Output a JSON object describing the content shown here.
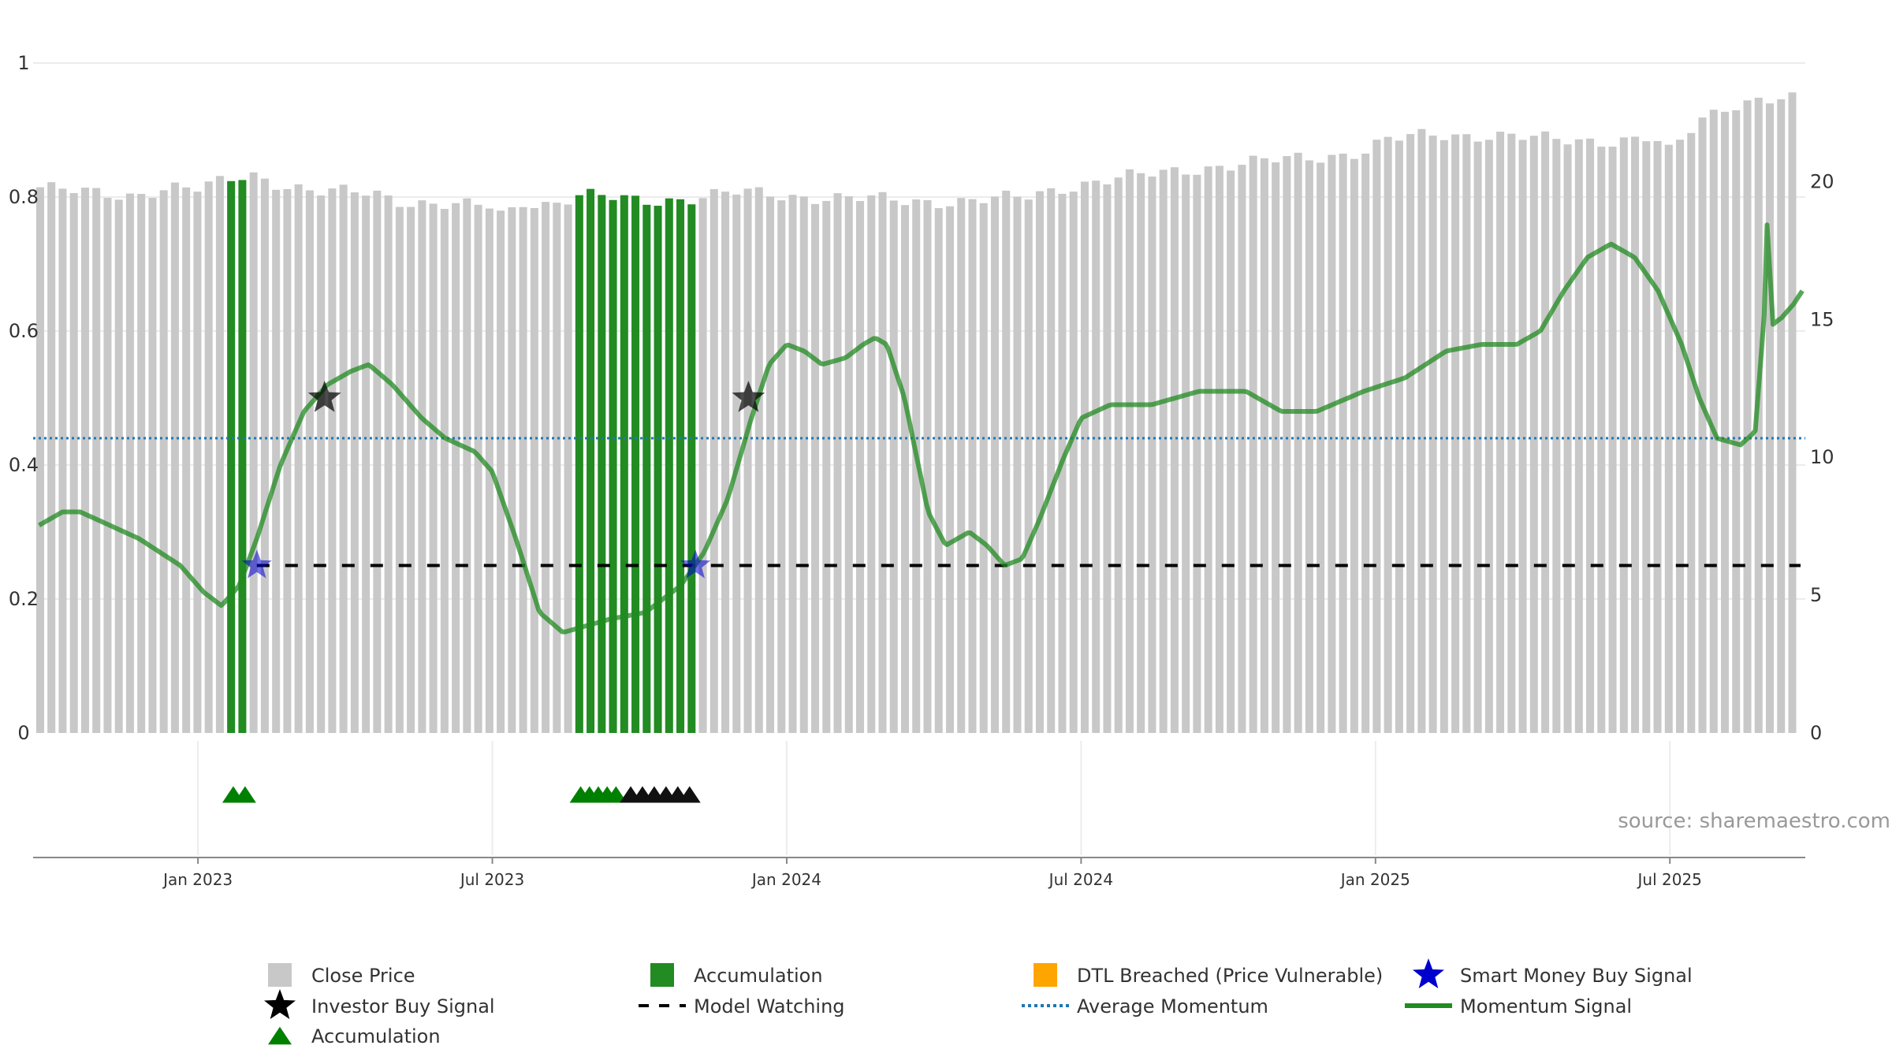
{
  "source_note": "source: sharemaestro.com",
  "colors": {
    "close_price": "#c8c8c8",
    "accumulation_bar": "#228b22",
    "dtl": "#ffa500",
    "smart_money": "#0000cd",
    "investor": "#000000",
    "watching": "#000000",
    "avg_momentum": "#1f77b4",
    "momentum": "#228b22",
    "accum_marker": "#008000"
  },
  "legend": {
    "close_price": "Close Price",
    "accumulation": "Accumulation",
    "dtl_breached": "DTL Breached (Price Vulnerable)",
    "smart_money": "Smart Money Buy Signal",
    "investor_buy": "Investor Buy Signal",
    "model_watching": "Model Watching",
    "average_momentum": "Average Momentum",
    "momentum_signal": "Momentum Signal",
    "accumulation_marker": "Accumulation"
  },
  "chart_data": {
    "type": "bar",
    "title": "",
    "x_range": [
      2022.72,
      2025.73
    ],
    "left_axis": {
      "ylim": [
        0,
        1
      ],
      "ticks": [
        "0",
        "0.2",
        "0.4",
        "0.6",
        "0.8",
        "1"
      ],
      "tick_values": [
        0,
        0.2,
        0.4,
        0.6,
        0.8,
        1
      ]
    },
    "right_axis": {
      "ylim": [
        0,
        24.3
      ],
      "ticks": [
        "0",
        "5",
        "10",
        "15",
        "20"
      ],
      "tick_values": [
        0,
        5,
        10,
        15,
        20
      ]
    },
    "x_ticks": [
      {
        "label": "Jan 2023",
        "x": 2023.0
      },
      {
        "label": "Jul 2023",
        "x": 2023.5
      },
      {
        "label": "Jan 2024",
        "x": 2024.0
      },
      {
        "label": "Jul 2024",
        "x": 2024.5
      },
      {
        "label": "Jan 2025",
        "x": 2025.0
      },
      {
        "label": "Jul 2025",
        "x": 2025.5
      }
    ],
    "close_price_anchors": [
      [
        2022.73,
        19.8
      ],
      [
        2022.8,
        19.6
      ],
      [
        2022.88,
        19.5
      ],
      [
        2022.95,
        19.8
      ],
      [
        2023.0,
        19.7
      ],
      [
        2023.06,
        20.1
      ],
      [
        2023.09,
        20.3
      ],
      [
        2023.13,
        20.0
      ],
      [
        2023.2,
        19.6
      ],
      [
        2023.3,
        19.6
      ],
      [
        2023.35,
        19.3
      ],
      [
        2023.45,
        19.1
      ],
      [
        2023.5,
        19.1
      ],
      [
        2023.52,
        18.7
      ],
      [
        2023.55,
        19.3
      ],
      [
        2023.6,
        19.2
      ],
      [
        2023.65,
        19.5
      ],
      [
        2023.7,
        19.4
      ],
      [
        2023.75,
        19.3
      ],
      [
        2023.83,
        19.4
      ],
      [
        2023.92,
        19.6
      ],
      [
        2024.0,
        19.5
      ],
      [
        2024.1,
        19.4
      ],
      [
        2024.2,
        19.3
      ],
      [
        2024.3,
        19.3
      ],
      [
        2024.4,
        19.4
      ],
      [
        2024.47,
        19.8
      ],
      [
        2024.52,
        20.0
      ],
      [
        2024.6,
        20.2
      ],
      [
        2024.7,
        20.5
      ],
      [
        2024.8,
        20.7
      ],
      [
        2024.9,
        20.9
      ],
      [
        2024.98,
        21.1
      ],
      [
        2025.02,
        21.5
      ],
      [
        2025.1,
        21.7
      ],
      [
        2025.2,
        21.7
      ],
      [
        2025.3,
        21.5
      ],
      [
        2025.4,
        21.5
      ],
      [
        2025.47,
        21.6
      ],
      [
        2025.5,
        21.0
      ],
      [
        2025.55,
        22.2
      ],
      [
        2025.6,
        22.8
      ],
      [
        2025.65,
        23.0
      ],
      [
        2025.7,
        23.0
      ],
      [
        2025.72,
        22.9
      ]
    ],
    "accumulation_bar_ranges": [
      [
        2023.05,
        2023.085
      ],
      [
        2023.645,
        2023.84
      ]
    ],
    "accumulation_markers_green": [
      2023.06,
      2023.08,
      2023.65,
      2023.665,
      2023.68,
      2023.695,
      2023.71
    ],
    "model_watching_markers_black": [
      2023.735,
      2023.755,
      2023.775,
      2023.795,
      2023.815,
      2023.835
    ],
    "momentum_anchors": [
      [
        2022.73,
        0.31
      ],
      [
        2022.77,
        0.33
      ],
      [
        2022.8,
        0.33
      ],
      [
        2022.9,
        0.29
      ],
      [
        2022.97,
        0.25
      ],
      [
        2023.01,
        0.21
      ],
      [
        2023.04,
        0.19
      ],
      [
        2023.07,
        0.22
      ],
      [
        2023.1,
        0.29
      ],
      [
        2023.14,
        0.4
      ],
      [
        2023.18,
        0.48
      ],
      [
        2023.22,
        0.52
      ],
      [
        2023.26,
        0.54
      ],
      [
        2023.29,
        0.55
      ],
      [
        2023.33,
        0.52
      ],
      [
        2023.38,
        0.47
      ],
      [
        2023.42,
        0.44
      ],
      [
        2023.47,
        0.42
      ],
      [
        2023.5,
        0.39
      ],
      [
        2023.54,
        0.29
      ],
      [
        2023.58,
        0.18
      ],
      [
        2023.62,
        0.15
      ],
      [
        2023.66,
        0.16
      ],
      [
        2023.7,
        0.17
      ],
      [
        2023.76,
        0.18
      ],
      [
        2023.82,
        0.22
      ],
      [
        2023.86,
        0.27
      ],
      [
        2023.9,
        0.35
      ],
      [
        2023.94,
        0.47
      ],
      [
        2023.97,
        0.55
      ],
      [
        2024.0,
        0.58
      ],
      [
        2024.03,
        0.57
      ],
      [
        2024.06,
        0.55
      ],
      [
        2024.1,
        0.56
      ],
      [
        2024.13,
        0.58
      ],
      [
        2024.15,
        0.59
      ],
      [
        2024.17,
        0.58
      ],
      [
        2024.2,
        0.5
      ],
      [
        2024.24,
        0.33
      ],
      [
        2024.27,
        0.28
      ],
      [
        2024.31,
        0.3
      ],
      [
        2024.34,
        0.28
      ],
      [
        2024.37,
        0.25
      ],
      [
        2024.4,
        0.26
      ],
      [
        2024.43,
        0.32
      ],
      [
        2024.47,
        0.41
      ],
      [
        2024.5,
        0.47
      ],
      [
        2024.55,
        0.49
      ],
      [
        2024.62,
        0.49
      ],
      [
        2024.7,
        0.51
      ],
      [
        2024.78,
        0.51
      ],
      [
        2024.84,
        0.48
      ],
      [
        2024.9,
        0.48
      ],
      [
        2024.98,
        0.51
      ],
      [
        2025.05,
        0.53
      ],
      [
        2025.12,
        0.57
      ],
      [
        2025.18,
        0.58
      ],
      [
        2025.24,
        0.58
      ],
      [
        2025.28,
        0.6
      ],
      [
        2025.32,
        0.66
      ],
      [
        2025.36,
        0.71
      ],
      [
        2025.4,
        0.73
      ],
      [
        2025.44,
        0.71
      ],
      [
        2025.48,
        0.66
      ],
      [
        2025.52,
        0.58
      ],
      [
        2025.55,
        0.5
      ],
      [
        2025.58,
        0.44
      ],
      [
        2025.62,
        0.43
      ],
      [
        2025.645,
        0.45
      ],
      [
        2025.66,
        0.62
      ],
      [
        2025.665,
        0.76
      ],
      [
        2025.675,
        0.61
      ],
      [
        2025.69,
        0.62
      ],
      [
        2025.71,
        0.64
      ],
      [
        2025.725,
        0.66
      ]
    ],
    "average_momentum": 0.44,
    "model_watching_level": 0.25,
    "model_watching_start": 2023.1,
    "investor_buy_signals": [
      [
        2023.215,
        0.5
      ],
      [
        2023.935,
        0.5
      ]
    ],
    "smart_money_signals": [
      [
        2023.1,
        0.25
      ],
      [
        2023.845,
        0.25
      ]
    ]
  }
}
